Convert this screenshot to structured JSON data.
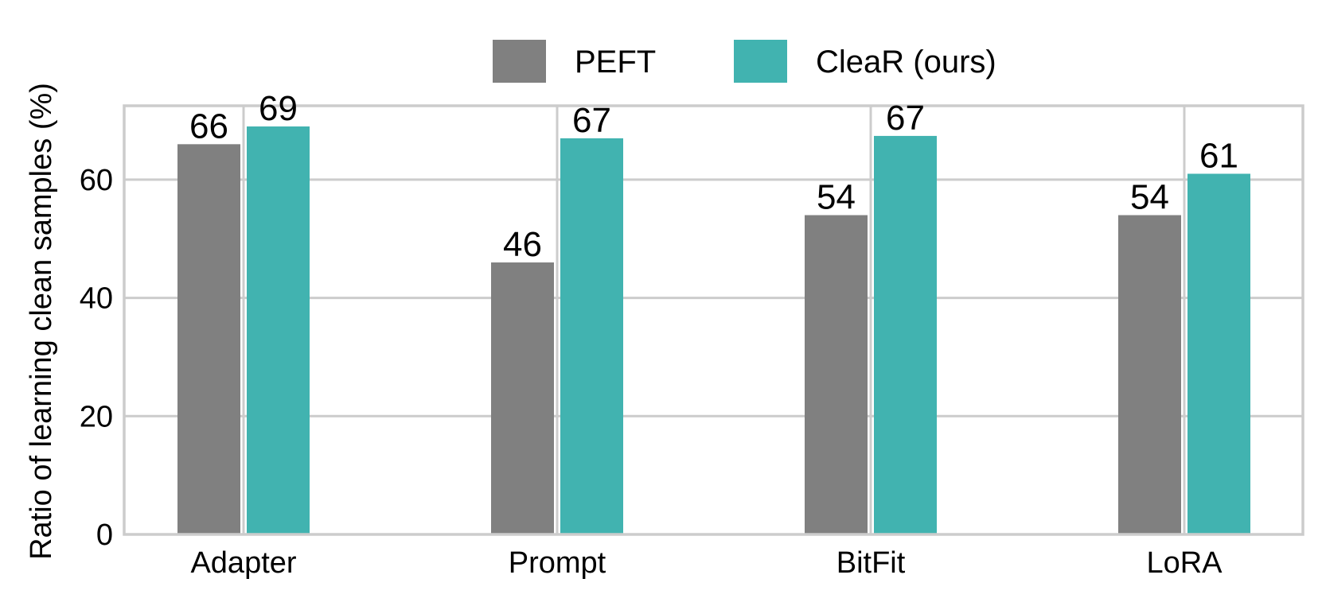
{
  "chart_data": {
    "type": "bar",
    "categories": [
      "Adapter",
      "Prompt",
      "BitFit",
      "LoRA"
    ],
    "series": [
      {
        "name": "PEFT",
        "color": "#808080",
        "values": [
          66,
          46,
          54,
          54
        ],
        "labels": [
          "66",
          "46",
          "54",
          "54"
        ]
      },
      {
        "name": "CleaR (ours)",
        "color": "#41b3b0",
        "values": [
          69,
          67,
          67.4,
          61
        ],
        "labels": [
          "69",
          "67",
          "67",
          "61"
        ]
      }
    ],
    "ylabel": "Ratio of learning clean samples (%)",
    "xlabel": "",
    "title": "",
    "ylim": [
      0,
      72.5
    ],
    "yticks": [
      0,
      20,
      40,
      60
    ],
    "grid": true,
    "legend_position": "top-center"
  }
}
